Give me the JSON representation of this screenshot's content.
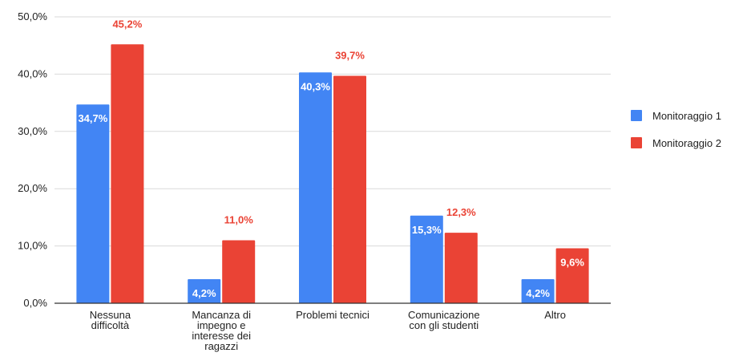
{
  "chart_data": {
    "type": "bar",
    "categories": [
      [
        "Nessuna",
        "difficoltà"
      ],
      [
        "Mancanza di",
        "impegno e",
        "interesse dei",
        "ragazzi"
      ],
      [
        "Problemi tecnici"
      ],
      [
        "Comunicazione",
        "con gli studenti"
      ],
      [
        "Altro"
      ]
    ],
    "series": [
      {
        "name": "Monitoraggio 1",
        "color": "#4285f4",
        "values": [
          34.7,
          4.2,
          40.3,
          15.3,
          4.2
        ],
        "labels": [
          "34,7%",
          "4,2%",
          "40,3%",
          "15,3%",
          "4,2%"
        ]
      },
      {
        "name": "Monitoraggio 2",
        "color": "#ea4335",
        "values": [
          45.2,
          11.0,
          39.7,
          12.3,
          9.6
        ],
        "labels": [
          "45,2%",
          "11,0%",
          "39,7%",
          "12,3%",
          "9,6%"
        ]
      }
    ],
    "ylim": [
      0,
      50
    ],
    "yticks": [
      0,
      10,
      20,
      30,
      40,
      50
    ],
    "ytick_labels": [
      "0,0%",
      "10,0%",
      "20,0%",
      "30,0%",
      "40,0%",
      "50,0%"
    ],
    "grid": true,
    "legend_position": "right",
    "title": "",
    "xlabel": "",
    "ylabel": ""
  }
}
